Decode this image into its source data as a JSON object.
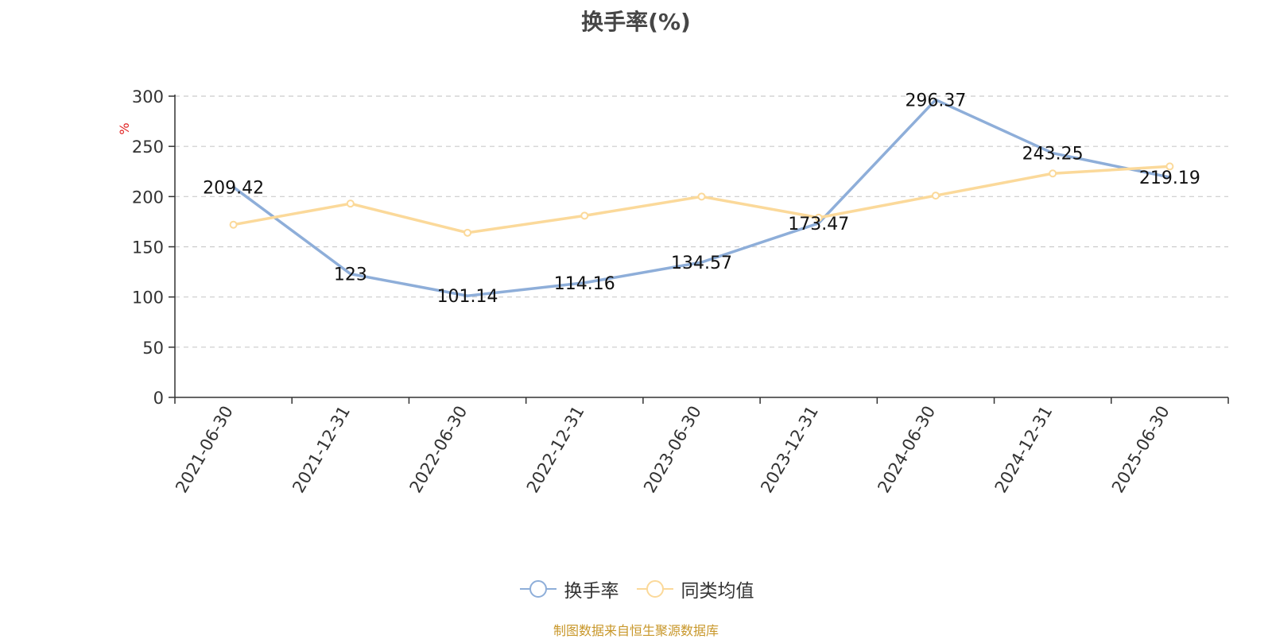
{
  "title": "换手率(%)",
  "source": "制图数据来自恒生聚源数据库",
  "chart_data": {
    "type": "line",
    "title": "换手率(%)",
    "ylabel": "%",
    "xlabel": "",
    "ylim": [
      0,
      300
    ],
    "yticks": [
      0,
      50,
      100,
      150,
      200,
      250,
      300
    ],
    "grid": true,
    "legend_position": "bottom-center",
    "categories": [
      "2021-06-30",
      "2021-12-31",
      "2022-06-30",
      "2022-12-31",
      "2023-06-30",
      "2023-12-31",
      "2024-06-30",
      "2024-12-31",
      "2025-06-30"
    ],
    "series": [
      {
        "name": "换手率",
        "color": "#8eaed9",
        "values": [
          209.42,
          123,
          101.14,
          114.16,
          134.57,
          173.47,
          296.37,
          243.25,
          219.19
        ],
        "labels": [
          "209.42",
          "123",
          "101.14",
          "114.16",
          "134.57",
          "173.47",
          "296.37",
          "243.25",
          "219.19"
        ]
      },
      {
        "name": "同类均值",
        "color": "#fbd99a",
        "values": [
          172,
          193,
          164,
          181,
          200,
          179,
          201,
          223,
          230
        ]
      }
    ]
  }
}
